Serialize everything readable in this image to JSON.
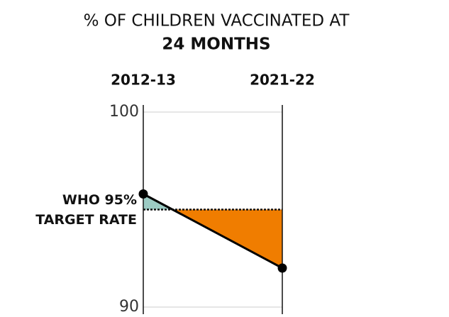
{
  "chart_data": {
    "type": "slope",
    "title": [
      "% OF CHILDREN VACCINATED AT",
      "24 MONTHS"
    ],
    "categories": [
      "2012-13",
      "2021-22"
    ],
    "values": [
      95.8,
      92.0
    ],
    "target": 95,
    "target_label": [
      "WHO 95%",
      "TARGET RATE"
    ],
    "ylim": [
      90,
      100
    ],
    "yticks": [
      100,
      90
    ],
    "grid": true,
    "line_color": "#000000",
    "above_color": "#9ccbc4",
    "below_color": "#f07d00"
  }
}
